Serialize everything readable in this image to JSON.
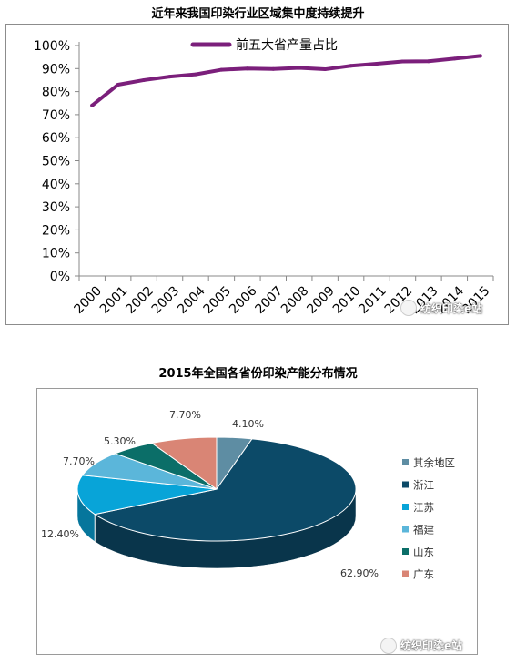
{
  "charts": {
    "line_title": "近年来我国印染行业区域集中度持续提升",
    "pie_title": "2015年全国各省份印染产能分布情况"
  },
  "watermark": {
    "text1": "纺织印染e站",
    "text2": "纺织印染e站"
  },
  "chart_data": [
    {
      "type": "line",
      "title": "近年来我国印染行业区域集中度持续提升",
      "x": [
        "2000",
        "2001",
        "2002",
        "2003",
        "2004",
        "2005",
        "2006",
        "2007",
        "2008",
        "2009",
        "2010",
        "2011",
        "2012",
        "2013",
        "2014",
        "2015"
      ],
      "series": [
        {
          "name": "前五大省产量占比",
          "values": [
            74,
            83,
            85,
            86.5,
            87.5,
            89.5,
            90,
            89.8,
            90.3,
            89.7,
            91.2,
            92.1,
            93.1,
            93.2,
            94.3,
            95.5
          ],
          "color": "#7B1F7B"
        }
      ],
      "ylim": [
        0,
        100
      ],
      "ytick_labels": [
        "0%",
        "10%",
        "20%",
        "30%",
        "40%",
        "50%",
        "60%",
        "70%",
        "80%",
        "90%",
        "100%"
      ],
      "grid": false,
      "legend_position": "top-center"
    },
    {
      "type": "pie",
      "title": "2015年全国各省份印染产能分布情况",
      "slices": [
        {
          "name": "其余地区",
          "value": 4.1,
          "label": "4.10%",
          "color": "#5E8DA3"
        },
        {
          "name": "浙江",
          "value": 62.9,
          "label": "62.90%",
          "color": "#0C4A68"
        },
        {
          "name": "江苏",
          "value": 12.4,
          "label": "12.40%",
          "color": "#08A4D8"
        },
        {
          "name": "福建",
          "value": 7.7,
          "label": "7.70%",
          "color": "#5BB6DA"
        },
        {
          "name": "山东",
          "value": 5.3,
          "label": "5.30%",
          "color": "#0B6E68"
        },
        {
          "name": "广东",
          "value": 7.7,
          "label": "7.70%",
          "color": "#D98575"
        }
      ],
      "legend_position": "right"
    }
  ]
}
